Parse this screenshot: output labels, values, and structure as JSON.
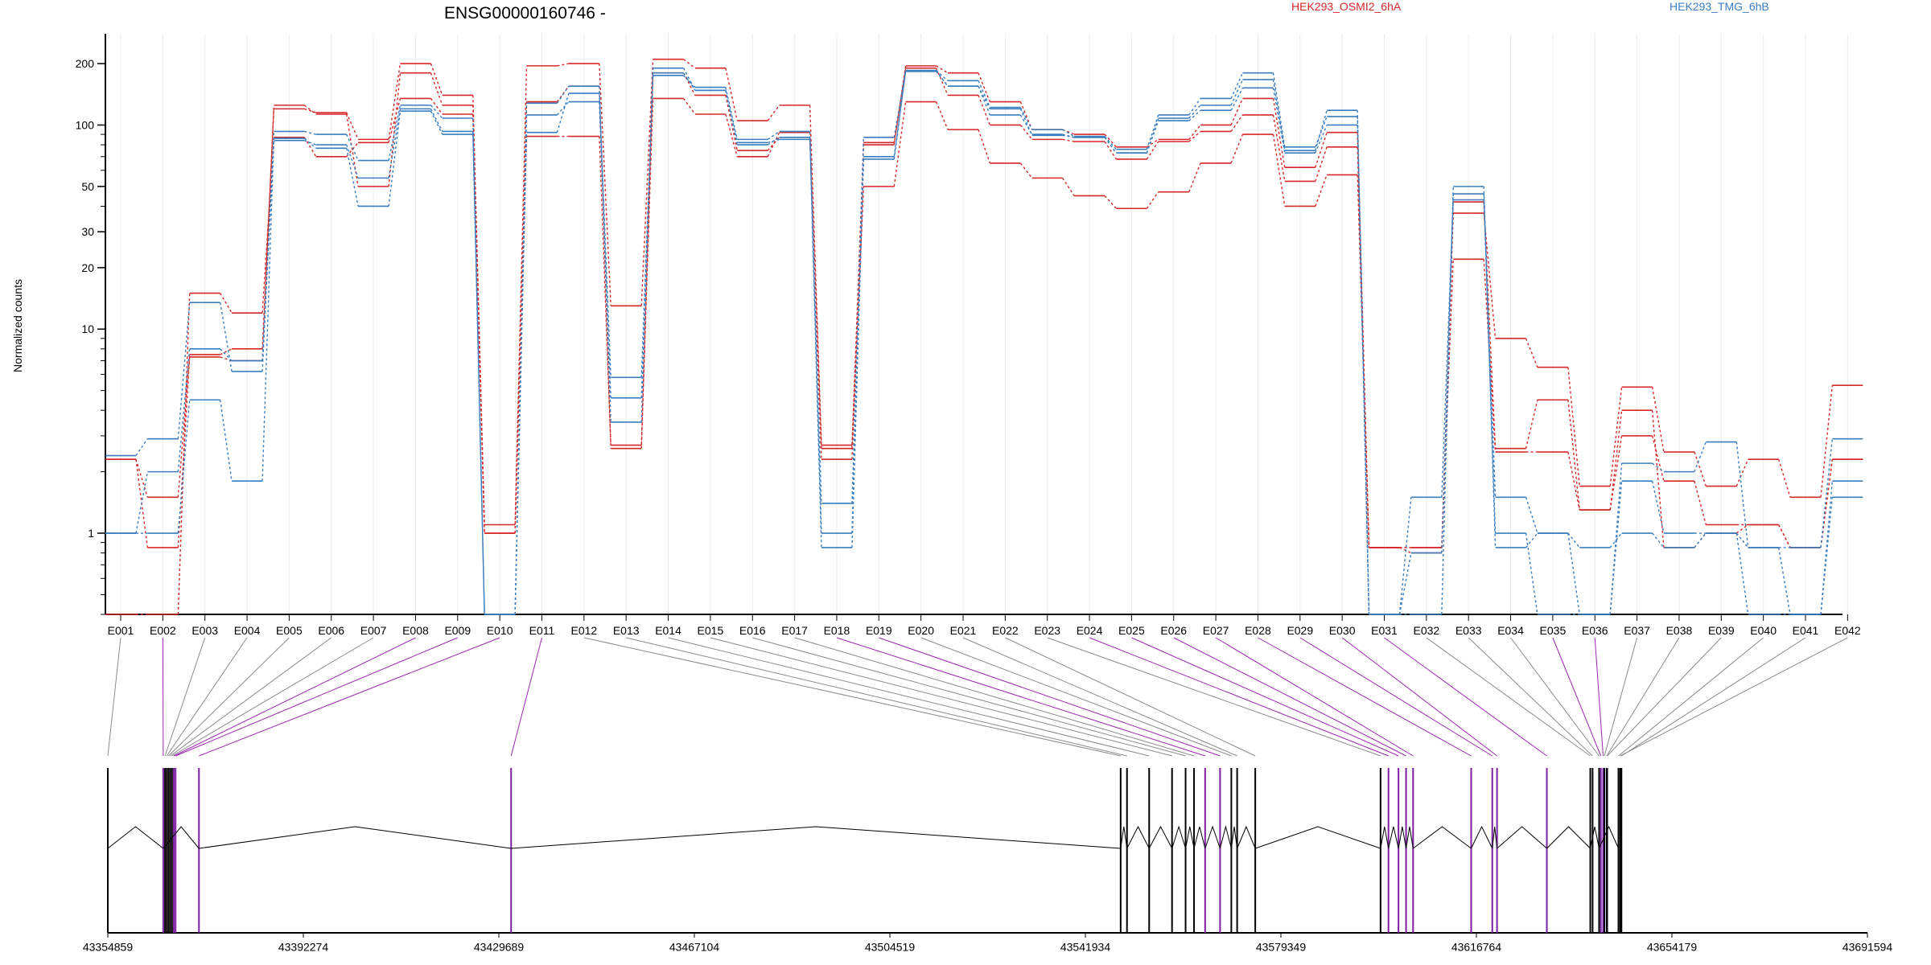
{
  "title": "ENSG00000160746 -",
  "legend": [
    {
      "label": "HEK293_OSMI2_6hA",
      "color": "#d62728"
    },
    {
      "label": "HEK293_TMG_6hB",
      "color": "#3a7ebf"
    }
  ],
  "chart_data": {
    "type": "line",
    "title": "ENSG00000160746 -",
    "ylabel": "Normalized counts",
    "yscale": "log",
    "ylim": [
      0.4,
      280
    ],
    "yticks": [
      1,
      10,
      20,
      30,
      50,
      100,
      200
    ],
    "categories": [
      "E001",
      "E002",
      "E003",
      "E004",
      "E005",
      "E006",
      "E007",
      "E008",
      "E009",
      "E010",
      "E011",
      "E012",
      "E013",
      "E014",
      "E015",
      "E016",
      "E017",
      "E018",
      "E019",
      "E020",
      "E021",
      "E022",
      "E023",
      "E024",
      "E025",
      "E026",
      "E027",
      "E028",
      "E029",
      "E030",
      "E031",
      "E032",
      "E033",
      "E034",
      "E035",
      "E036",
      "E037",
      "E038",
      "E039",
      "E040",
      "E041",
      "E042"
    ],
    "series": [
      {
        "name": "HEK293_OSMI2_6hA",
        "color": "#d62728",
        "values": [
          2.3,
          1.5,
          7.5,
          8,
          120,
          115,
          85,
          200,
          140,
          1.1,
          195,
          200,
          13,
          210,
          190,
          105,
          125,
          2.7,
          80,
          195,
          180,
          130,
          95,
          90,
          78,
          85,
          100,
          135,
          62,
          92,
          0.85,
          0.85,
          37,
          9,
          6.5,
          1.7,
          5.2,
          2.5,
          1.7,
          2.3,
          1.5,
          5.3
        ]
      },
      {
        "name": "HEK293_OSMI2_6hA",
        "color": "#d62728",
        "values": [
          2.3,
          0.85,
          7.3,
          7,
          125,
          113,
          50,
          180,
          125,
          1.0,
          88,
          88,
          2.7,
          135,
          113,
          70,
          92,
          2.6,
          50,
          130,
          95,
          65,
          55,
          45,
          39,
          47,
          65,
          90,
          40,
          57,
          0.85,
          0.85,
          22,
          2.5,
          2.5,
          1.3,
          4,
          0.85,
          1.0,
          1.1,
          0.85,
          2.3
        ]
      },
      {
        "name": "HEK293_OSMI2_6hA",
        "color": "#d62728",
        "values": [
          0.4,
          0.4,
          15,
          12,
          87,
          70,
          82,
          135,
          113,
          1.0,
          130,
          155,
          2.6,
          180,
          140,
          75,
          87,
          2.3,
          82,
          190,
          140,
          100,
          85,
          83,
          68,
          83,
          93,
          112,
          53,
          78,
          0.85,
          0.8,
          42,
          2.6,
          4.5,
          1.3,
          3,
          1.8,
          1.1,
          1.1,
          0.85,
          2.3
        ]
      },
      {
        "name": "HEK293_TMG_6hB",
        "color": "#3a7ebf",
        "values": [
          2.4,
          2.9,
          13.5,
          6.2,
          93,
          90,
          67,
          125,
          108,
          0.4,
          112,
          130,
          4.6,
          190,
          148,
          80,
          87,
          1.4,
          87,
          185,
          165,
          122,
          95,
          88,
          76,
          112,
          135,
          180,
          78,
          110,
          0.4,
          0.8,
          46,
          1.0,
          0.4,
          0.4,
          2.2,
          2.0,
          2.8,
          0.85,
          0.4,
          1.8
        ]
      },
      {
        "name": "HEK293_TMG_6hB",
        "color": "#3a7ebf",
        "values": [
          1.0,
          2.0,
          8,
          7,
          84,
          80,
          55,
          120,
          93,
          0.4,
          92,
          143,
          5.8,
          175,
          153,
          85,
          93,
          1.0,
          70,
          183,
          155,
          120,
          89,
          87,
          73,
          108,
          125,
          167,
          75,
          118,
          0.4,
          1.5,
          43,
          1.5,
          1.0,
          0.4,
          1.8,
          1.0,
          1.0,
          0.85,
          0.85,
          2.9
        ]
      },
      {
        "name": "HEK293_TMG_6hB",
        "color": "#3a7ebf",
        "values": [
          1.0,
          1.0,
          4.5,
          1.8,
          86,
          77,
          40,
          117,
          90,
          0.4,
          128,
          155,
          3.5,
          180,
          148,
          82,
          85,
          0.85,
          68,
          185,
          155,
          112,
          90,
          87,
          73,
          105,
          118,
          152,
          73,
          100,
          0.4,
          0.4,
          50,
          0.85,
          1.0,
          0.85,
          1.0,
          0.85,
          1.0,
          0.4,
          0.4,
          1.5
        ]
      }
    ],
    "exon_highlight": [
      "E002",
      "E008",
      "E009",
      "E010",
      "E011",
      "E018",
      "E019",
      "E024",
      "E025",
      "E026",
      "E027",
      "E028",
      "E029",
      "E030",
      "E031",
      "E035",
      "E036"
    ],
    "genome": {
      "start": 43354859,
      "end": 43691594,
      "tick_labels": [
        "43354859",
        "43392274",
        "43429689",
        "43467104",
        "43504519",
        "43541934",
        "43579349",
        "43616764",
        "43654179",
        "43691594"
      ]
    }
  }
}
